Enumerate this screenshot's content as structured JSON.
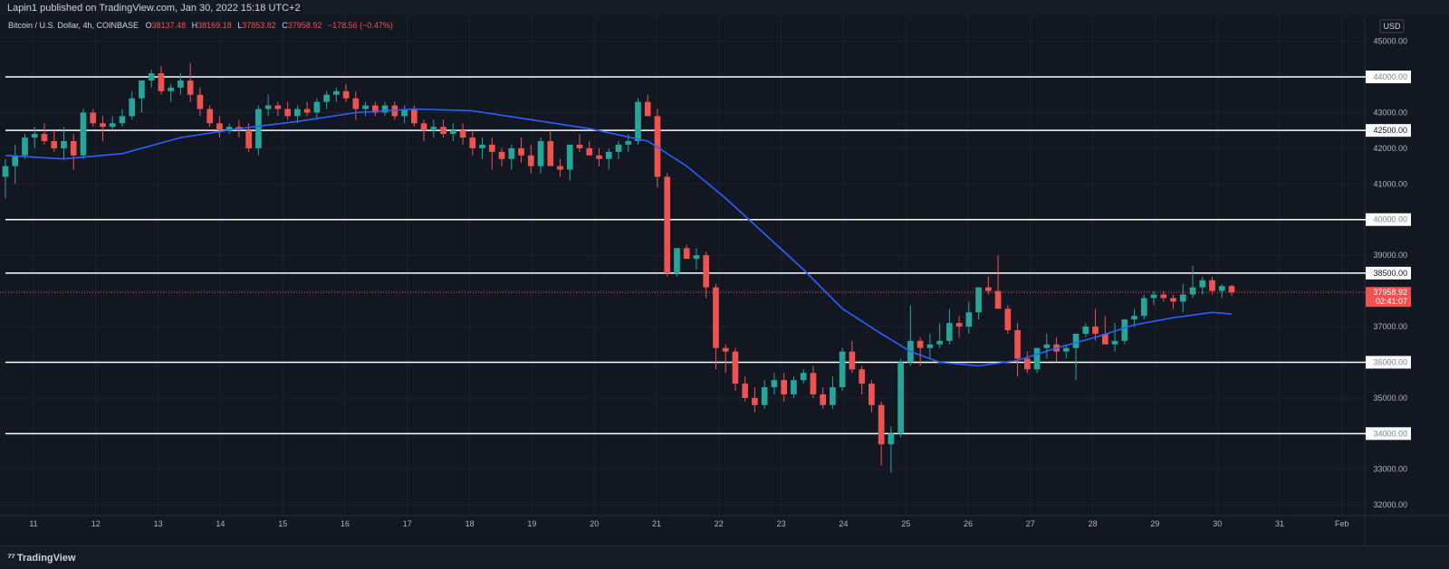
{
  "publish_info": "Lapin1 published on TradingView.com, Jan 30, 2022 15:18 UTC+2",
  "legend": {
    "symbol": "Bitcoin / U.S. Dollar, 4h, COINBASE",
    "open_label": "O",
    "open": "38137.48",
    "high_label": "H",
    "high": "38169.18",
    "low_label": "L",
    "low": "37853.82",
    "close_label": "C",
    "close": "37958.92",
    "change": "−178.56 (−0.47%)"
  },
  "currency": "USD",
  "last_price": {
    "value": "37958.92",
    "countdown": "02:41:07"
  },
  "colors": {
    "background": "#131722",
    "up": "#26a69a",
    "down": "#ef5350",
    "ma": "#2962ff",
    "level_line": "#ffffff",
    "axis_text": "#b2b5be"
  },
  "footer": {
    "brand": "TradingView",
    "logo_icon": "tradingview-logo-icon"
  },
  "chart_data": {
    "type": "candlestick",
    "timeframe": "4h",
    "x_ticks": [
      "11",
      "12",
      "13",
      "14",
      "15",
      "16",
      "17",
      "18",
      "19",
      "20",
      "21",
      "22",
      "23",
      "24",
      "25",
      "26",
      "27",
      "28",
      "29",
      "30",
      "31",
      "Feb"
    ],
    "y_ticks": [
      32000,
      33000,
      34000,
      35000,
      36000,
      37000,
      38000,
      39000,
      40000,
      41000,
      42000,
      43000,
      44000,
      45000
    ],
    "ylim": [
      31700,
      45700
    ],
    "horizontal_levels": [
      44000,
      42500,
      40000,
      38500,
      36000,
      34000
    ],
    "last_price": 37958.92,
    "candles_ohlc": [
      [
        41200,
        41700,
        40600,
        41500
      ],
      [
        41500,
        42100,
        41000,
        41800
      ],
      [
        41800,
        42400,
        41700,
        42300
      ],
      [
        42300,
        42600,
        42000,
        42400
      ],
      [
        42400,
        42700,
        42100,
        42200
      ],
      [
        42200,
        42500,
        41900,
        42000
      ],
      [
        42000,
        42600,
        41700,
        42200
      ],
      [
        42200,
        42400,
        41400,
        41800
      ],
      [
        41800,
        43100,
        41700,
        43000
      ],
      [
        43000,
        43100,
        42600,
        42700
      ],
      [
        42700,
        42900,
        42200,
        42600
      ],
      [
        42600,
        42900,
        42500,
        42700
      ],
      [
        42700,
        43100,
        42600,
        42900
      ],
      [
        42900,
        43600,
        42800,
        43400
      ],
      [
        43400,
        43800,
        43000,
        43900
      ],
      [
        43900,
        44200,
        43700,
        44100
      ],
      [
        44100,
        44300,
        43500,
        43600
      ],
      [
        43600,
        43800,
        43300,
        43700
      ],
      [
        43700,
        44100,
        43500,
        43900
      ],
      [
        43900,
        44400,
        43300,
        43500
      ],
      [
        43500,
        43700,
        42900,
        43100
      ],
      [
        43100,
        43200,
        42600,
        42700
      ],
      [
        42700,
        42900,
        42300,
        42500
      ],
      [
        42500,
        42700,
        42400,
        42600
      ],
      [
        42600,
        42800,
        42300,
        42500
      ],
      [
        42500,
        42700,
        41900,
        42000
      ],
      [
        42000,
        43200,
        41800,
        43100
      ],
      [
        43100,
        43500,
        42900,
        43200
      ],
      [
        43200,
        43300,
        42900,
        43100
      ],
      [
        43100,
        43300,
        42800,
        42900
      ],
      [
        42900,
        43200,
        42700,
        43100
      ],
      [
        43100,
        43300,
        42900,
        43000
      ],
      [
        43000,
        43400,
        42800,
        43300
      ],
      [
        43300,
        43600,
        43100,
        43500
      ],
      [
        43500,
        43700,
        43300,
        43600
      ],
      [
        43600,
        43800,
        43300,
        43400
      ],
      [
        43400,
        43600,
        42800,
        43100
      ],
      [
        43100,
        43300,
        42900,
        43200
      ],
      [
        43200,
        43300,
        42900,
        43000
      ],
      [
        43000,
        43300,
        42900,
        43200
      ],
      [
        43200,
        43300,
        42800,
        42900
      ],
      [
        42900,
        43200,
        42700,
        43100
      ],
      [
        43100,
        43200,
        42600,
        42700
      ],
      [
        42700,
        42800,
        42200,
        42500
      ],
      [
        42500,
        42800,
        42300,
        42600
      ],
      [
        42600,
        42800,
        42300,
        42400
      ],
      [
        42400,
        42700,
        42200,
        42500
      ],
      [
        42500,
        42700,
        42100,
        42300
      ],
      [
        42300,
        42500,
        41800,
        42000
      ],
      [
        42000,
        42300,
        41700,
        42100
      ],
      [
        42100,
        42300,
        41400,
        41900
      ],
      [
        41900,
        42000,
        41500,
        41700
      ],
      [
        41700,
        42100,
        41400,
        42000
      ],
      [
        42000,
        42300,
        41600,
        41800
      ],
      [
        41800,
        42100,
        41300,
        41500
      ],
      [
        41500,
        42300,
        41300,
        42200
      ],
      [
        42200,
        42500,
        41900,
        41500
      ],
      [
        41500,
        41700,
        41200,
        41400
      ],
      [
        41400,
        42000,
        41100,
        42100
      ],
      [
        42100,
        42400,
        41900,
        42000
      ],
      [
        42000,
        42200,
        41800,
        41800
      ],
      [
        41800,
        42000,
        41500,
        41700
      ],
      [
        41700,
        42000,
        41400,
        41900
      ],
      [
        41900,
        42200,
        41700,
        42100
      ],
      [
        42100,
        42400,
        41900,
        42200
      ],
      [
        42200,
        43400,
        42100,
        43300
      ],
      [
        43300,
        43500,
        42900,
        42900
      ],
      [
        42900,
        43100,
        40900,
        41200
      ],
      [
        41200,
        41300,
        38400,
        38500
      ],
      [
        38500,
        39200,
        38400,
        39200
      ],
      [
        39200,
        39300,
        38900,
        38900
      ],
      [
        38900,
        39200,
        38600,
        39000
      ],
      [
        39000,
        39100,
        37800,
        38100
      ],
      [
        38100,
        38200,
        35800,
        36400
      ],
      [
        36400,
        36500,
        35700,
        36300
      ],
      [
        36300,
        36400,
        35200,
        35400
      ],
      [
        35400,
        35600,
        34900,
        35000
      ],
      [
        35000,
        35300,
        34600,
        34800
      ],
      [
        34800,
        35500,
        34700,
        35300
      ],
      [
        35300,
        35700,
        35100,
        35500
      ],
      [
        35500,
        35700,
        34900,
        35100
      ],
      [
        35100,
        35600,
        35000,
        35500
      ],
      [
        35500,
        35800,
        35400,
        35700
      ],
      [
        35700,
        35900,
        35000,
        35100
      ],
      [
        35100,
        35300,
        34700,
        34800
      ],
      [
        34800,
        35600,
        34700,
        35300
      ],
      [
        35300,
        36400,
        35200,
        36300
      ],
      [
        36300,
        36600,
        35700,
        35800
      ],
      [
        35800,
        35900,
        35100,
        35400
      ],
      [
        35400,
        35500,
        34600,
        34800
      ],
      [
        34800,
        34900,
        33100,
        33700
      ],
      [
        33700,
        34200,
        32900,
        34000
      ],
      [
        34000,
        36100,
        33900,
        36000
      ],
      [
        36000,
        37600,
        35900,
        36600
      ],
      [
        36600,
        36700,
        35900,
        36400
      ],
      [
        36400,
        36800,
        36100,
        36500
      ],
      [
        36500,
        37100,
        36400,
        36600
      ],
      [
        36600,
        37500,
        36500,
        37100
      ],
      [
        37100,
        37300,
        36700,
        37000
      ],
      [
        37000,
        37700,
        36800,
        37400
      ],
      [
        37400,
        37800,
        37200,
        38100
      ],
      [
        38100,
        38400,
        37900,
        38000
      ],
      [
        38000,
        39000,
        37500,
        37500
      ],
      [
        37500,
        37600,
        36800,
        36900
      ],
      [
        36900,
        37100,
        35600,
        36100
      ],
      [
        36100,
        36300,
        35700,
        35800
      ],
      [
        35800,
        36400,
        35700,
        36400
      ],
      [
        36400,
        36800,
        36100,
        36500
      ],
      [
        36500,
        36700,
        36000,
        36300
      ],
      [
        36300,
        36500,
        36100,
        36400
      ],
      [
        36400,
        36800,
        35500,
        36800
      ],
      [
        36800,
        37100,
        36700,
        37000
      ],
      [
        37000,
        37500,
        36600,
        36800
      ],
      [
        36800,
        37300,
        36600,
        36500
      ],
      [
        36500,
        37100,
        36300,
        36600
      ],
      [
        36600,
        37200,
        36500,
        37200
      ],
      [
        37200,
        37500,
        37000,
        37300
      ],
      [
        37300,
        37900,
        37200,
        37800
      ],
      [
        37800,
        38000,
        37600,
        37900
      ],
      [
        37900,
        38000,
        37700,
        37800
      ],
      [
        37800,
        37900,
        37500,
        37700
      ],
      [
        37700,
        38200,
        37400,
        37900
      ],
      [
        37900,
        38700,
        37800,
        38100
      ],
      [
        38100,
        38400,
        37900,
        38300
      ],
      [
        38300,
        38400,
        37900,
        38000
      ],
      [
        38000,
        38200,
        37800,
        38137
      ],
      [
        38137,
        38169,
        37854,
        37959
      ]
    ],
    "ma_line": [
      [
        0,
        41800
      ],
      [
        6,
        41700
      ],
      [
        12,
        41850
      ],
      [
        18,
        42300
      ],
      [
        24,
        42550
      ],
      [
        30,
        42750
      ],
      [
        36,
        43000
      ],
      [
        42,
        43100
      ],
      [
        48,
        43050
      ],
      [
        54,
        42800
      ],
      [
        60,
        42550
      ],
      [
        66,
        42200
      ],
      [
        70,
        41500
      ],
      [
        74,
        40600
      ],
      [
        78,
        39600
      ],
      [
        82,
        38600
      ],
      [
        86,
        37500
      ],
      [
        90,
        36800
      ],
      [
        93,
        36300
      ],
      [
        96,
        36000
      ],
      [
        100,
        35900
      ],
      [
        104,
        36050
      ],
      [
        108,
        36400
      ],
      [
        112,
        36700
      ],
      [
        116,
        37050
      ],
      [
        120,
        37250
      ],
      [
        124,
        37400
      ],
      [
        126,
        37350
      ]
    ]
  }
}
